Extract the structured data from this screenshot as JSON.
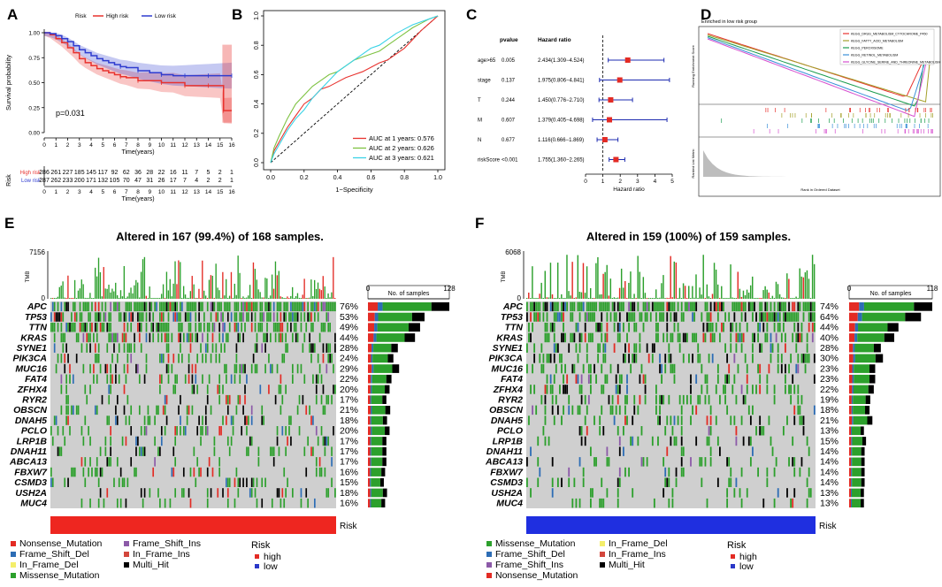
{
  "panel_letters": {
    "a": "A",
    "b": "B",
    "c": "C",
    "d": "D",
    "e": "E",
    "f": "F"
  },
  "chart_data": [
    {
      "type": "line",
      "panel": "A",
      "title": "",
      "legend": {
        "title": "Risk",
        "entries": [
          "High risk",
          "Low risk"
        ],
        "placement": "top"
      },
      "pvalue": "p=0.031",
      "xlabel": "Time(years)",
      "ylabel": "Survival probability",
      "xlim": [
        0,
        16
      ],
      "ylim": [
        0,
        1
      ],
      "x_ticks": [
        "0",
        "1",
        "2",
        "3",
        "4",
        "5",
        "6",
        "7",
        "8",
        "9",
        "10",
        "11",
        "12",
        "13",
        "14",
        "15",
        "16"
      ],
      "y_ticks": [
        "0.00",
        "0.25",
        "0.50",
        "0.75",
        "1.00"
      ],
      "colors": {
        "High risk": "#e8322e",
        "Low risk": "#2f3ccf"
      },
      "series": [
        {
          "name": "High risk",
          "x": [
            0,
            0.5,
            1,
            1.5,
            2,
            2.5,
            3,
            3.5,
            4,
            4.5,
            5,
            5.5,
            6,
            6.5,
            7,
            8,
            9,
            10,
            11,
            12,
            13,
            14,
            15,
            15.3,
            16
          ],
          "values": [
            1.0,
            0.98,
            0.94,
            0.9,
            0.85,
            0.8,
            0.74,
            0.7,
            0.67,
            0.64,
            0.62,
            0.6,
            0.58,
            0.56,
            0.55,
            0.52,
            0.52,
            0.5,
            0.5,
            0.47,
            0.47,
            0.47,
            0.47,
            0.22,
            0.22
          ]
        },
        {
          "name": "Low risk",
          "x": [
            0,
            0.5,
            1,
            1.5,
            2,
            2.5,
            3,
            3.5,
            4,
            4.5,
            5,
            5.5,
            6,
            6.5,
            7,
            8,
            9,
            10,
            11,
            12,
            13,
            14,
            15,
            16
          ],
          "values": [
            1.0,
            0.99,
            0.97,
            0.94,
            0.91,
            0.87,
            0.83,
            0.8,
            0.77,
            0.74,
            0.72,
            0.7,
            0.68,
            0.66,
            0.65,
            0.62,
            0.6,
            0.58,
            0.57,
            0.57,
            0.57,
            0.57,
            0.57,
            0.57
          ]
        }
      ],
      "risk_table": {
        "label": "Risk",
        "xlabel": "Time(years)",
        "rows": [
          {
            "name": "High risk",
            "values": [
              "286",
              "261",
              "227",
              "185",
              "145",
              "117",
              "92",
              "62",
              "36",
              "28",
              "22",
              "16",
              "11",
              "7",
              "5",
              "2",
              "1"
            ]
          },
          {
            "name": "Low risk",
            "values": [
              "287",
              "262",
              "233",
              "200",
              "171",
              "132",
              "105",
              "70",
              "47",
              "31",
              "26",
              "17",
              "7",
              "4",
              "2",
              "2",
              "1"
            ]
          }
        ]
      }
    },
    {
      "type": "line",
      "panel": "B",
      "xlabel": "1−Specificity",
      "ylabel": "",
      "xlim": [
        0,
        1
      ],
      "ylim": [
        0,
        1
      ],
      "x_ticks": [
        "0.0",
        "0.2",
        "0.4",
        "0.6",
        "0.8",
        "1.0"
      ],
      "y_ticks": [
        "0.0",
        "0.2",
        "0.4",
        "0.6",
        "0.8",
        "1.0"
      ],
      "series": [
        {
          "name": "AUC at 1 years: 0.576",
          "color": "#e8322e",
          "x": [
            0,
            0.02,
            0.05,
            0.1,
            0.15,
            0.2,
            0.25,
            0.3,
            0.35,
            0.4,
            0.45,
            0.5,
            0.55,
            0.6,
            0.65,
            0.7,
            0.75,
            0.8,
            0.85,
            0.9,
            0.95,
            1.0
          ],
          "values": [
            0,
            0.08,
            0.14,
            0.24,
            0.32,
            0.4,
            0.44,
            0.5,
            0.52,
            0.55,
            0.58,
            0.6,
            0.62,
            0.65,
            0.68,
            0.7,
            0.74,
            0.78,
            0.84,
            0.9,
            0.95,
            1.0
          ]
        },
        {
          "name": "AUC at 2 years: 0.626",
          "color": "#7ec242",
          "x": [
            0,
            0.02,
            0.05,
            0.1,
            0.15,
            0.2,
            0.25,
            0.3,
            0.35,
            0.4,
            0.45,
            0.5,
            0.55,
            0.6,
            0.65,
            0.7,
            0.75,
            0.8,
            0.85,
            0.9,
            0.95,
            1.0
          ],
          "values": [
            0,
            0.1,
            0.18,
            0.3,
            0.4,
            0.46,
            0.52,
            0.56,
            0.6,
            0.62,
            0.66,
            0.7,
            0.72,
            0.74,
            0.76,
            0.8,
            0.84,
            0.88,
            0.92,
            0.95,
            0.98,
            1.0
          ]
        },
        {
          "name": "AUC at 3 years: 0.621",
          "color": "#3ad3e6",
          "x": [
            0,
            0.02,
            0.05,
            0.1,
            0.15,
            0.2,
            0.25,
            0.3,
            0.35,
            0.4,
            0.45,
            0.5,
            0.55,
            0.6,
            0.65,
            0.7,
            0.75,
            0.8,
            0.85,
            0.9,
            0.95,
            1.0
          ],
          "values": [
            0,
            0.06,
            0.12,
            0.22,
            0.3,
            0.36,
            0.44,
            0.5,
            0.56,
            0.62,
            0.66,
            0.7,
            0.74,
            0.78,
            0.8,
            0.84,
            0.88,
            0.91,
            0.94,
            0.96,
            0.98,
            1.0
          ]
        }
      ]
    },
    {
      "type": "scatter",
      "panel": "C",
      "headers": {
        "pvalue": "pvalue",
        "hr": "Hazard ratio"
      },
      "xlabel": "Hazard ratio",
      "xlim": [
        0,
        5
      ],
      "x_ticks": [
        "0",
        "1",
        "2",
        "3",
        "4",
        "5"
      ],
      "rows": [
        {
          "name": "age>65",
          "pvalue": "0.005",
          "hr_text": "2.434(1.309−4.524)",
          "hr": 2.434,
          "lo": 1.309,
          "hi": 4.524
        },
        {
          "name": "stage",
          "pvalue": "0.137",
          "hr_text": "1.975(0.806−4.841)",
          "hr": 1.975,
          "lo": 0.806,
          "hi": 4.841
        },
        {
          "name": "T",
          "pvalue": "0.244",
          "hr_text": "1.450(0.776−2.710)",
          "hr": 1.45,
          "lo": 0.776,
          "hi": 2.71
        },
        {
          "name": "M",
          "pvalue": "0.607",
          "hr_text": "1.379(0.405−4.698)",
          "hr": 1.379,
          "lo": 0.405,
          "hi": 4.698
        },
        {
          "name": "N",
          "pvalue": "0.677",
          "hr_text": "1.116(0.666−1.869)",
          "hr": 1.116,
          "lo": 0.666,
          "hi": 1.869
        },
        {
          "name": "riskScore",
          "pvalue": "<0.001",
          "hr_text": "1.755(1.360−2.265)",
          "hr": 1.755,
          "lo": 1.36,
          "hi": 2.265
        }
      ]
    },
    {
      "type": "line",
      "panel": "D",
      "title": "Enriched in low risk group",
      "ylabel_top": "Running Enrichment Score",
      "ylabel_bottom": "Ranked List Metric",
      "xlabel": "Rank in Ordered Dataset",
      "series": [
        {
          "name": "KEGG_DRUG_METABOLISM_CYTOCHROME_P450",
          "color": "#e8322e"
        },
        {
          "name": "KEGG_FATTY_ACID_METABOLISM",
          "color": "#a4a02a"
        },
        {
          "name": "KEGG_PEROXISOME",
          "color": "#1b9c4e"
        },
        {
          "name": "KEGG_RETINOL_METABOLISM",
          "color": "#3a8fd8"
        },
        {
          "name": "KEGG_GLYCINE_SERINE_AND_THREONINE_METABOLISM",
          "color": "#d64fcf"
        }
      ]
    },
    {
      "type": "heatmap",
      "panel": "E",
      "title": "Altered in 167 (99.4%) of 168 samples.",
      "tmb_label": "TMB",
      "tmb_max": "7156",
      "tmb_min": "0",
      "bar_axis": {
        "min": "0",
        "max": "128",
        "label": "No. of samples"
      },
      "genes": [
        "APC",
        "TP53",
        "TTN",
        "KRAS",
        "SYNE1",
        "PIK3CA",
        "MUC16",
        "FAT4",
        "ZFHX4",
        "RYR2",
        "OBSCN",
        "DNAH5",
        "PCLO",
        "LRP1B",
        "DNAH11",
        "ABCA13",
        "FBXW7",
        "CSMD3",
        "USH2A",
        "MUC4"
      ],
      "percentages": [
        "76%",
        "53%",
        "49%",
        "44%",
        "28%",
        "24%",
        "29%",
        "22%",
        "20%",
        "17%",
        "21%",
        "18%",
        "20%",
        "17%",
        "17%",
        "17%",
        "16%",
        "15%",
        "18%",
        "16%"
      ],
      "bar_values": [
        128,
        89,
        82,
        74,
        47,
        40,
        49,
        37,
        34,
        29,
        35,
        30,
        34,
        29,
        29,
        29,
        27,
        25,
        30,
        27
      ],
      "risk_label": "Risk",
      "risk_color": "#ee2620",
      "legend": {
        "items": [
          {
            "label": "Nonsense_Mutation",
            "color": "#e32b24"
          },
          {
            "label": "Frame_Shift_Del",
            "color": "#2d6db5"
          },
          {
            "label": "In_Frame_Del",
            "color": "#f4ee6a"
          },
          {
            "label": "Missense_Mutation",
            "color": "#2ca02c"
          },
          {
            "label": "Frame_Shift_Ins",
            "color": "#8c5aa8"
          },
          {
            "label": "In_Frame_Ins",
            "color": "#d3463c"
          },
          {
            "label": "Multi_Hit",
            "color": "#000000"
          }
        ],
        "risk_title": "Risk",
        "risk_items": [
          {
            "label": "high",
            "color": "#e32b24"
          },
          {
            "label": "low",
            "color": "#2a37c8"
          }
        ]
      }
    },
    {
      "type": "heatmap",
      "panel": "F",
      "title": "Altered in 159 (100%) of 159 samples.",
      "tmb_label": "TMB",
      "tmb_max": "6068",
      "tmb_min": "0",
      "bar_axis": {
        "min": "0",
        "max": "118",
        "label": "No. of samples"
      },
      "genes": [
        "APC",
        "TP53",
        "TTN",
        "KRAS",
        "SYNE1",
        "PIK3CA",
        "MUC16",
        "FAT4",
        "ZFHX4",
        "RYR2",
        "OBSCN",
        "DNAH5",
        "PCLO",
        "LRP1B",
        "DNAH11",
        "ABCA13",
        "FBXW7",
        "CSMD3",
        "USH2A",
        "MUC4"
      ],
      "percentages": [
        "74%",
        "64%",
        "44%",
        "40%",
        "28%",
        "30%",
        "23%",
        "23%",
        "22%",
        "19%",
        "18%",
        "21%",
        "13%",
        "15%",
        "14%",
        "14%",
        "14%",
        "14%",
        "13%",
        "13%"
      ],
      "bar_values": [
        118,
        102,
        70,
        64,
        45,
        48,
        37,
        37,
        35,
        30,
        29,
        33,
        21,
        24,
        22,
        22,
        22,
        22,
        21,
        21
      ],
      "risk_label": "Risk",
      "risk_color": "#1f2fe0",
      "legend": {
        "items": [
          {
            "label": "Missense_Mutation",
            "color": "#2ca02c"
          },
          {
            "label": "Frame_Shift_Del",
            "color": "#2d6db5"
          },
          {
            "label": "Frame_Shift_Ins",
            "color": "#8c5aa8"
          },
          {
            "label": "Nonsense_Mutation",
            "color": "#e32b24"
          },
          {
            "label": "In_Frame_Del",
            "color": "#f4ee6a"
          },
          {
            "label": "In_Frame_Ins",
            "color": "#d3463c"
          },
          {
            "label": "Multi_Hit",
            "color": "#000000"
          }
        ],
        "risk_title": "Risk",
        "risk_items": [
          {
            "label": "high",
            "color": "#e32b24"
          },
          {
            "label": "low",
            "color": "#2a37c8"
          }
        ]
      }
    }
  ]
}
